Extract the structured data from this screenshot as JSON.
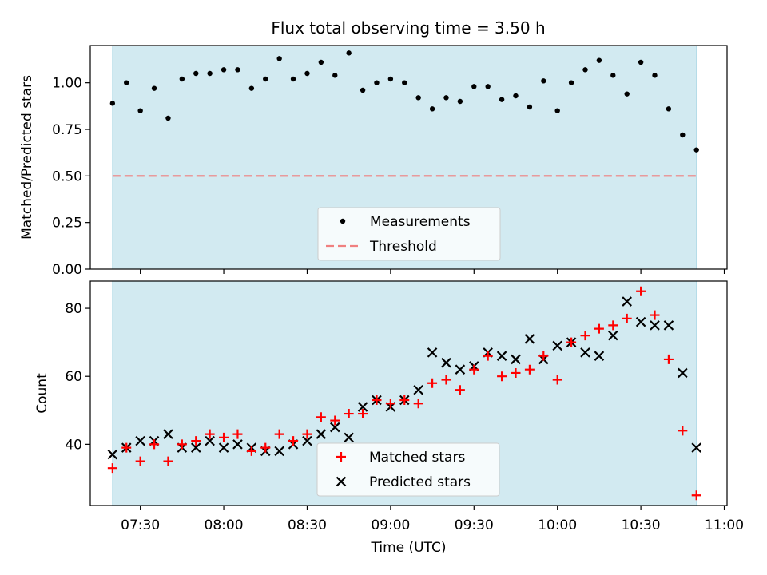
{
  "figure_title": "Flux total observing time = 3.50 h",
  "colors": {
    "observing_window": "#add8e6",
    "measurements": "#000000",
    "threshold": "#f08080",
    "matched": "#ff0000",
    "predicted": "#000000"
  },
  "chart_data": [
    {
      "type": "scatter",
      "ylabel": "Matched/Predicted stars",
      "ylim": [
        0,
        1.2
      ],
      "yticks": [
        "0.00",
        "0.25",
        "0.50",
        "0.75",
        "1.00"
      ],
      "x_unit": "time (UTC)",
      "x_range": [
        "07:12",
        "11:01"
      ],
      "observing_window": [
        "07:20",
        "10:50"
      ],
      "threshold": 0.5,
      "legend": {
        "placement": "lower center",
        "entries": [
          "Measurements",
          "Threshold"
        ]
      },
      "series": [
        {
          "name": "Measurements",
          "x": [
            "07:20",
            "07:25",
            "07:30",
            "07:35",
            "07:40",
            "07:45",
            "07:50",
            "07:55",
            "08:00",
            "08:05",
            "08:10",
            "08:15",
            "08:20",
            "08:25",
            "08:30",
            "08:35",
            "08:40",
            "08:45",
            "08:50",
            "08:55",
            "09:00",
            "09:05",
            "09:10",
            "09:15",
            "09:20",
            "09:25",
            "09:30",
            "09:35",
            "09:40",
            "09:45",
            "09:50",
            "09:55",
            "10:00",
            "10:05",
            "10:10",
            "10:15",
            "10:20",
            "10:25",
            "10:30",
            "10:35",
            "10:40",
            "10:45",
            "10:50"
          ],
          "y": [
            0.89,
            1.0,
            0.85,
            0.97,
            0.81,
            1.02,
            1.05,
            1.05,
            1.07,
            1.07,
            0.97,
            1.02,
            1.13,
            1.02,
            1.05,
            1.11,
            1.04,
            1.16,
            0.96,
            1.0,
            1.02,
            1.0,
            0.92,
            0.86,
            0.92,
            0.9,
            0.98,
            0.98,
            0.91,
            0.93,
            0.87,
            1.01,
            0.85,
            1.0,
            1.07,
            1.12,
            1.04,
            0.94,
            1.11,
            1.04,
            0.86,
            0.72,
            0.64
          ]
        }
      ]
    },
    {
      "type": "scatter",
      "xlabel": "Time (UTC)",
      "ylabel": "Count",
      "ylim": [
        22,
        88
      ],
      "yticks": [
        "40",
        "60",
        "80"
      ],
      "xticks": [
        "07:30",
        "08:00",
        "08:30",
        "09:00",
        "09:30",
        "10:00",
        "10:30",
        "11:00"
      ],
      "x_range": [
        "07:12",
        "11:01"
      ],
      "observing_window": [
        "07:20",
        "10:50"
      ],
      "legend": {
        "placement": "lower center",
        "entries": [
          "Matched stars",
          "Predicted stars"
        ]
      },
      "series": [
        {
          "name": "Matched stars",
          "x": [
            "07:20",
            "07:25",
            "07:30",
            "07:35",
            "07:40",
            "07:45",
            "07:50",
            "07:55",
            "08:00",
            "08:05",
            "08:10",
            "08:15",
            "08:20",
            "08:25",
            "08:30",
            "08:35",
            "08:40",
            "08:45",
            "08:50",
            "08:55",
            "09:00",
            "09:05",
            "09:10",
            "09:15",
            "09:20",
            "09:25",
            "09:30",
            "09:35",
            "09:40",
            "09:45",
            "09:50",
            "09:55",
            "10:00",
            "10:05",
            "10:10",
            "10:15",
            "10:20",
            "10:25",
            "10:30",
            "10:35",
            "10:40",
            "10:45",
            "10:50"
          ],
          "y": [
            33,
            39,
            35,
            40,
            35,
            40,
            41,
            43,
            42,
            43,
            38,
            39,
            43,
            41,
            43,
            48,
            47,
            49,
            49,
            53,
            52,
            53,
            52,
            58,
            59,
            56,
            62,
            66,
            60,
            61,
            62,
            66,
            59,
            70,
            72,
            74,
            75,
            77,
            85,
            78,
            65,
            44,
            25
          ]
        },
        {
          "name": "Predicted stars",
          "x": [
            "07:20",
            "07:25",
            "07:30",
            "07:35",
            "07:40",
            "07:45",
            "07:50",
            "07:55",
            "08:00",
            "08:05",
            "08:10",
            "08:15",
            "08:20",
            "08:25",
            "08:30",
            "08:35",
            "08:40",
            "08:45",
            "08:50",
            "08:55",
            "09:00",
            "09:05",
            "09:10",
            "09:15",
            "09:20",
            "09:25",
            "09:30",
            "09:35",
            "09:40",
            "09:45",
            "09:50",
            "09:55",
            "10:00",
            "10:05",
            "10:10",
            "10:15",
            "10:20",
            "10:25",
            "10:30",
            "10:35",
            "10:40",
            "10:45",
            "10:50"
          ],
          "y": [
            37,
            39,
            41,
            41,
            43,
            39,
            39,
            41,
            39,
            40,
            39,
            38,
            38,
            40,
            41,
            43,
            45,
            42,
            51,
            53,
            51,
            53,
            56,
            67,
            64,
            62,
            63,
            67,
            66,
            65,
            71,
            65,
            69,
            70,
            67,
            66,
            72,
            82,
            76,
            75,
            75,
            61,
            39
          ]
        }
      ]
    }
  ]
}
